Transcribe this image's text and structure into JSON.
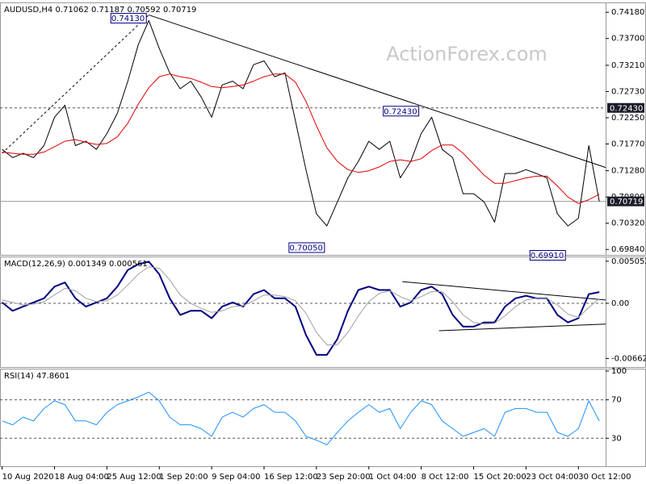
{
  "chart_data": [
    {
      "type": "line",
      "title": "AUDUSD,H4  0.71062 0.71187 0.70592 0.70719",
      "watermark": "ActionForex.com",
      "xlim": [
        -0.2,
        57.6
      ],
      "ylim": [
        0.6974,
        0.7436
      ],
      "yticks": [
        {
          "value": 0.7418,
          "label": "0.74180"
        },
        {
          "value": 0.737,
          "label": "0.73700"
        },
        {
          "value": 0.7321,
          "label": "0.73210"
        },
        {
          "value": 0.7273,
          "label": "0.72730"
        },
        {
          "value": 0.7225,
          "label": "0.72250"
        },
        {
          "value": 0.7177,
          "label": "0.71770"
        },
        {
          "value": 0.7128,
          "label": "0.71280"
        },
        {
          "value": 0.708,
          "label": "0.70800"
        },
        {
          "value": 0.7032,
          "label": "0.70320"
        },
        {
          "value": 0.6984,
          "label": "0.69840"
        }
      ],
      "series": [
        {
          "color": "#000000",
          "line_width": 1,
          "values": [
            0.7167,
            0.7152,
            0.716,
            0.7152,
            0.7174,
            0.7226,
            0.7248,
            0.7174,
            0.7182,
            0.7167,
            0.7196,
            0.7233,
            0.7292,
            0.7359,
            0.7403,
            0.7352,
            0.7307,
            0.7278,
            0.7292,
            0.7263,
            0.7226,
            0.7285,
            0.7292,
            0.7278,
            0.7322,
            0.7329,
            0.73,
            0.7307,
            0.7219,
            0.713,
            0.7049,
            0.7027,
            0.7071,
            0.7115,
            0.7145,
            0.7182,
            0.7167,
            0.7182,
            0.7115,
            0.7145,
            0.7196,
            0.7226,
            0.7167,
            0.7152,
            0.7086,
            0.7086,
            0.7071,
            0.7034,
            0.7123,
            0.7123,
            0.713,
            0.7123,
            0.7115,
            0.7049,
            0.7027,
            0.7041,
            0.7174,
            0.70719
          ]
        },
        {
          "color": "#e00000",
          "line_width": 1,
          "values": [
            0.7162,
            0.716,
            0.7158,
            0.7158,
            0.7162,
            0.7172,
            0.7182,
            0.7185,
            0.718,
            0.7176,
            0.7178,
            0.719,
            0.7215,
            0.725,
            0.728,
            0.73,
            0.7305,
            0.73,
            0.7297,
            0.729,
            0.7282,
            0.728,
            0.7282,
            0.7285,
            0.7292,
            0.73,
            0.7305,
            0.7305,
            0.729,
            0.7255,
            0.721,
            0.717,
            0.7145,
            0.713,
            0.7125,
            0.7128,
            0.7135,
            0.7145,
            0.7148,
            0.7145,
            0.715,
            0.7165,
            0.7175,
            0.7175,
            0.716,
            0.714,
            0.712,
            0.7105,
            0.7105,
            0.711,
            0.7115,
            0.7118,
            0.7118,
            0.71,
            0.708,
            0.7068,
            0.7075,
            0.7085
          ]
        }
      ],
      "trendlines": [
        {
          "from": [
            0,
            0.716
          ],
          "to": [
            14,
            0.7413
          ],
          "style": "dashed"
        },
        {
          "from": [
            14,
            0.7413
          ],
          "to": [
            57.6,
            0.7134
          ],
          "style": "solid"
        }
      ],
      "hlines": [
        {
          "value": 0.7243,
          "label": "0.72430",
          "style": "dashed"
        },
        {
          "value": 0.70719,
          "label": "0.70719",
          "style": "solid"
        }
      ],
      "annotations": [
        {
          "index": 14,
          "value": 0.7413,
          "label": "0.74130"
        },
        {
          "index": 31,
          "value": 0.7005,
          "label": "0.70050"
        },
        {
          "index": 40,
          "value": 0.7243,
          "label": "0.72430"
        },
        {
          "index": 54,
          "value": 0.6991,
          "label": "0.69910"
        }
      ]
    },
    {
      "type": "line",
      "title": "MACD(12,26,9) 0.001349 0.000561",
      "xlim": [
        -0.2,
        57.6
      ],
      "ylim": [
        -0.00766,
        0.00562
      ],
      "yticks": [
        0.005052,
        {
          "value": 0,
          "label": "0.00"
        },
        -0.006629
      ],
      "series": [
        {
          "color": "#000080",
          "line_width": 2,
          "values": [
            0.0001,
            -0.0009,
            -0.0004,
            0.0001,
            0.0006,
            0.002,
            0.0025,
            0.0006,
            -0.0004,
            0.0001,
            0.0006,
            0.002,
            0.004,
            0.0047,
            0.005,
            0.0035,
            0.0006,
            -0.0014,
            -0.0009,
            -0.0009,
            -0.0018,
            -0.0004,
            0.0001,
            -0.0004,
            0.0011,
            0.0016,
            0.0006,
            0.0006,
            -0.0004,
            -0.0038,
            -0.0062,
            -0.0062,
            -0.0043,
            -0.0009,
            0.0016,
            0.002,
            0.0016,
            0.0016,
            -0.0004,
            0.0001,
            0.0016,
            0.002,
            0.0011,
            -0.0014,
            -0.0028,
            -0.0028,
            -0.0023,
            -0.0023,
            -0.0004,
            0.0006,
            0.0009,
            0.0006,
            0.0006,
            -0.0014,
            -0.0023,
            -0.0018,
            0.0011,
            0.001349
          ]
        },
        {
          "color": "#a0a0a0",
          "line_width": 1,
          "values": [
            0.0004,
            0.0001,
            -0.0002,
            -0.0001,
            0.0002,
            0.001,
            0.0018,
            0.0015,
            0.0006,
            0.0002,
            0.0003,
            0.001,
            0.0022,
            0.0035,
            0.0044,
            0.0042,
            0.0028,
            0.001,
            0,
            -0.0006,
            -0.0011,
            -0.0009,
            -0.0004,
            -0.0003,
            0.0003,
            0.001,
            0.001,
            0.0008,
            0.0003,
            -0.0012,
            -0.0035,
            -0.005,
            -0.005,
            -0.0035,
            -0.0015,
            0.0002,
            0.0012,
            0.0015,
            0.0008,
            0.0003,
            0.0008,
            0.0014,
            0.0014,
            0.0002,
            -0.0014,
            -0.0023,
            -0.0025,
            -0.0024,
            -0.0015,
            -0.0004,
            0.0004,
            0.0006,
            0.0006,
            -0.0002,
            -0.0013,
            -0.0017,
            -0.0005,
            0.000561
          ]
        }
      ],
      "trendlines": [
        {
          "from": [
            38.2,
            0.0026
          ],
          "to": [
            57.6,
            0.0004
          ],
          "style": "solid"
        },
        {
          "from": [
            41.7,
            -0.0033
          ],
          "to": [
            57.6,
            -0.0025
          ],
          "style": "solid"
        }
      ],
      "hlines": [
        {
          "value": 0,
          "style": "dashed"
        }
      ]
    },
    {
      "type": "line",
      "title": "RSI(14) 47.8601",
      "xlim": [
        -0.2,
        57.6
      ],
      "ylim": [
        0.8,
        102.5
      ],
      "yticks": [
        100,
        70,
        30
      ],
      "xticks": [
        {
          "value": 0,
          "label": "10 Aug 2020"
        },
        {
          "value": 5,
          "label": "18 Aug 04:00"
        },
        {
          "value": 10,
          "label": "25 Aug 12:00"
        },
        {
          "value": 15,
          "label": "1 Sep 20:00"
        },
        {
          "value": 20,
          "label": "9 Sep 04:00"
        },
        {
          "value": 25,
          "label": "16 Sep 12:00"
        },
        {
          "value": 30,
          "label": "23 Sep 20:00"
        },
        {
          "value": 35,
          "label": "1 Oct 04:00"
        },
        {
          "value": 40,
          "label": "8 Oct 12:00"
        },
        {
          "value": 45,
          "label": "15 Oct 20:00"
        },
        {
          "value": 50,
          "label": "23 Oct 04:00"
        },
        {
          "value": 55,
          "label": "30 Oct 12:00"
        }
      ],
      "series": [
        {
          "color": "#1e90ff",
          "line_width": 1,
          "values": [
            48,
            44,
            52,
            48,
            61,
            69,
            65,
            48,
            48,
            44,
            57,
            65,
            69,
            73,
            78,
            69,
            52,
            44,
            44,
            40,
            32,
            52,
            57,
            52,
            61,
            65,
            57,
            57,
            48,
            32,
            28,
            23,
            36,
            48,
            57,
            65,
            57,
            61,
            40,
            57,
            69,
            65,
            48,
            40,
            32,
            36,
            40,
            32,
            57,
            61,
            61,
            57,
            57,
            36,
            32,
            40,
            69,
            47.8601
          ]
        }
      ],
      "hlines": [
        {
          "value": 70,
          "style": "dashed"
        },
        {
          "value": 30,
          "style": "dashed"
        }
      ]
    }
  ]
}
